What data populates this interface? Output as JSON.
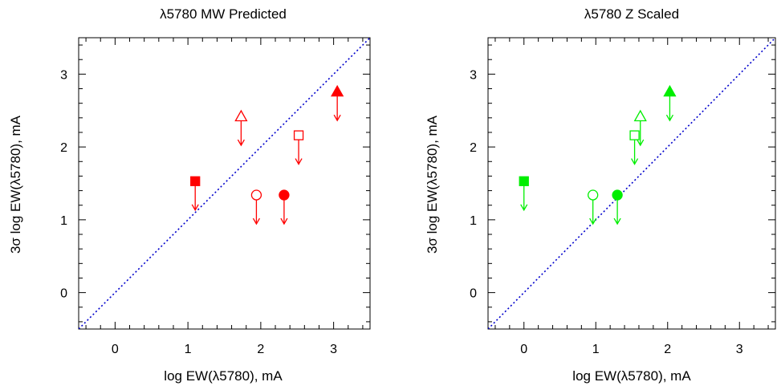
{
  "chart_data": [
    {
      "type": "scatter",
      "title": "λ5780 MW Predicted",
      "xlabel": "log EW(λ5780), mA",
      "ylabel": "3σ log EW(λ5780), mA",
      "xlim": [
        -0.5,
        3.5
      ],
      "ylim": [
        -0.5,
        3.5
      ],
      "xticks": [
        0,
        1,
        2,
        3
      ],
      "yticks": [
        0,
        1,
        2,
        3
      ],
      "grid": false,
      "color": "#ff0000",
      "reference_line": {
        "style": "dotted",
        "color": "#0000cc",
        "slope": 1,
        "intercept": 0
      },
      "points": [
        {
          "x": 1.1,
          "y": 1.53,
          "marker": "square",
          "filled": true,
          "upper_limit": true
        },
        {
          "x": 1.73,
          "y": 2.42,
          "marker": "triangle",
          "filled": false,
          "upper_limit": true
        },
        {
          "x": 1.94,
          "y": 1.34,
          "marker": "circle",
          "filled": false,
          "upper_limit": true
        },
        {
          "x": 2.32,
          "y": 1.34,
          "marker": "circle",
          "filled": true,
          "upper_limit": true
        },
        {
          "x": 2.52,
          "y": 2.16,
          "marker": "square",
          "filled": false,
          "upper_limit": true
        },
        {
          "x": 3.05,
          "y": 2.76,
          "marker": "triangle",
          "filled": true,
          "upper_limit": true
        }
      ]
    },
    {
      "type": "scatter",
      "title": "λ5780 Z Scaled",
      "xlabel": "log EW(λ5780), mA",
      "ylabel": "3σ log EW(λ5780), mA",
      "xlim": [
        -0.5,
        3.5
      ],
      "ylim": [
        -0.5,
        3.5
      ],
      "xticks": [
        0,
        1,
        2,
        3
      ],
      "yticks": [
        0,
        1,
        2,
        3
      ],
      "grid": false,
      "color": "#00ee00",
      "reference_line": {
        "style": "dotted",
        "color": "#0000cc",
        "slope": 1,
        "intercept": 0
      },
      "points": [
        {
          "x": 0.0,
          "y": 1.53,
          "marker": "square",
          "filled": true,
          "upper_limit": true
        },
        {
          "x": 0.96,
          "y": 1.34,
          "marker": "circle",
          "filled": false,
          "upper_limit": true
        },
        {
          "x": 1.3,
          "y": 1.34,
          "marker": "circle",
          "filled": true,
          "upper_limit": true
        },
        {
          "x": 1.54,
          "y": 2.16,
          "marker": "square",
          "filled": false,
          "upper_limit": true
        },
        {
          "x": 1.62,
          "y": 2.42,
          "marker": "triangle",
          "filled": false,
          "upper_limit": true
        },
        {
          "x": 2.03,
          "y": 2.76,
          "marker": "triangle",
          "filled": true,
          "upper_limit": true
        }
      ]
    }
  ]
}
